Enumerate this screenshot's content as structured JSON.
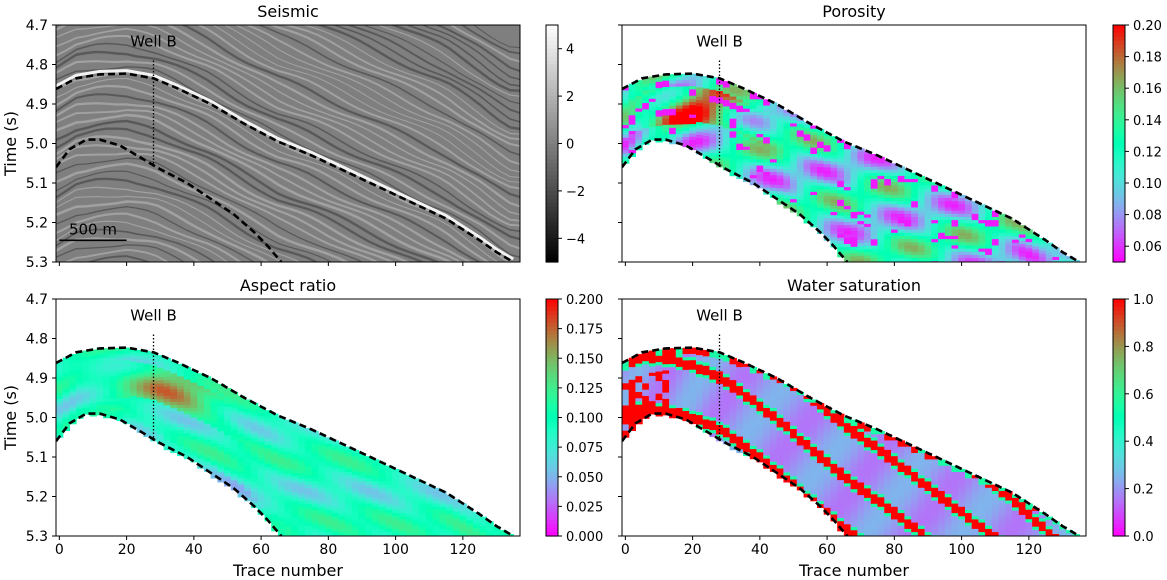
{
  "chart_data": [
    {
      "type": "heatmap",
      "title": "Seismic",
      "ylabel": "Time (s)",
      "xlabel": "",
      "xlim": [
        -1,
        137
      ],
      "ylim": [
        5.3,
        4.7
      ],
      "xticks": [
        0,
        20,
        40,
        60,
        80,
        100,
        120
      ],
      "yticks": [
        4.7,
        4.8,
        4.9,
        5.0,
        5.1,
        5.2,
        5.3
      ],
      "ytick_labels": [
        "4.7",
        "4.8",
        "4.9",
        "5.0",
        "5.1",
        "5.2",
        "5.3"
      ],
      "well_label": "Well B",
      "well_trace": 28,
      "scale_bar_label": "500 m",
      "colormap": "gray",
      "colorbar": {
        "min": -5,
        "max": 5,
        "ticks": [
          -4,
          -2,
          0,
          2,
          4
        ],
        "tick_labels": [
          "−4",
          "−2",
          "0",
          "2",
          "4"
        ]
      }
    },
    {
      "type": "heatmap",
      "title": "Porosity",
      "xlabel": "",
      "xlim": [
        -1,
        137
      ],
      "ylim": [
        5.3,
        4.7
      ],
      "xticks": [
        0,
        20,
        40,
        60,
        80,
        100,
        120
      ],
      "well_label": "Well B",
      "well_trace": 28,
      "colormap": "rainbow",
      "colorbar": {
        "min": 0.05,
        "max": 0.2,
        "ticks": [
          0.06,
          0.08,
          0.1,
          0.12,
          0.14,
          0.16,
          0.18,
          0.2
        ],
        "tick_labels": [
          "0.06",
          "0.08",
          "0.10",
          "0.12",
          "0.14",
          "0.16",
          "0.18",
          "0.20"
        ]
      }
    },
    {
      "type": "heatmap",
      "title": "Aspect ratio",
      "ylabel": "Time (s)",
      "xlabel": "Trace number",
      "xlim": [
        -1,
        137
      ],
      "ylim": [
        5.3,
        4.7
      ],
      "xticks": [
        0,
        20,
        40,
        60,
        80,
        100,
        120
      ],
      "xtick_labels": [
        "0",
        "20",
        "40",
        "60",
        "80",
        "100",
        "120"
      ],
      "yticks": [
        4.7,
        4.8,
        4.9,
        5.0,
        5.1,
        5.2,
        5.3
      ],
      "ytick_labels": [
        "4.7",
        "4.8",
        "4.9",
        "5.0",
        "5.1",
        "5.2",
        "5.3"
      ],
      "well_label": "Well B",
      "well_trace": 28,
      "colormap": "rainbow",
      "colorbar": {
        "min": 0,
        "max": 0.2,
        "ticks": [
          0,
          0.025,
          0.05,
          0.075,
          0.1,
          0.125,
          0.15,
          0.175,
          0.2
        ],
        "tick_labels": [
          "0.000",
          "0.025",
          "0.050",
          "0.075",
          "0.100",
          "0.125",
          "0.150",
          "0.175",
          "0.200"
        ]
      }
    },
    {
      "type": "heatmap",
      "title": "Water saturation",
      "xlabel": "Trace number",
      "xlim": [
        -1,
        137
      ],
      "ylim": [
        5.3,
        4.7
      ],
      "xticks": [
        0,
        20,
        40,
        60,
        80,
        100,
        120
      ],
      "xtick_labels": [
        "0",
        "20",
        "40",
        "60",
        "80",
        "100",
        "120"
      ],
      "well_label": "Well B",
      "well_trace": 28,
      "colormap": "rainbow",
      "colorbar": {
        "min": 0,
        "max": 1,
        "ticks": [
          0,
          0.2,
          0.4,
          0.6,
          0.8,
          1.0
        ],
        "tick_labels": [
          "0.0",
          "0.2",
          "0.4",
          "0.6",
          "0.8",
          "1.0"
        ]
      }
    }
  ],
  "horizons": {
    "top": [
      [
        -1,
        4.862
      ],
      [
        5,
        4.835
      ],
      [
        12,
        4.825
      ],
      [
        20,
        4.823
      ],
      [
        28,
        4.835
      ],
      [
        35,
        4.86
      ],
      [
        45,
        4.9
      ],
      [
        55,
        4.95
      ],
      [
        65,
        4.995
      ],
      [
        75,
        5.03
      ],
      [
        85,
        5.07
      ],
      [
        95,
        5.11
      ],
      [
        105,
        5.15
      ],
      [
        115,
        5.19
      ],
      [
        125,
        5.245
      ],
      [
        130,
        5.275
      ],
      [
        135,
        5.3
      ]
    ],
    "base": [
      [
        -1,
        5.06
      ],
      [
        3,
        5.015
      ],
      [
        8,
        4.99
      ],
      [
        12,
        4.99
      ],
      [
        18,
        5.005
      ],
      [
        24,
        5.035
      ],
      [
        30,
        5.065
      ],
      [
        38,
        5.1
      ],
      [
        45,
        5.14
      ],
      [
        52,
        5.18
      ],
      [
        58,
        5.225
      ],
      [
        62,
        5.26
      ],
      [
        66,
        5.3
      ]
    ]
  },
  "colors": {
    "horizon": "#000000",
    "well": "#000000",
    "axis": "#000000"
  }
}
